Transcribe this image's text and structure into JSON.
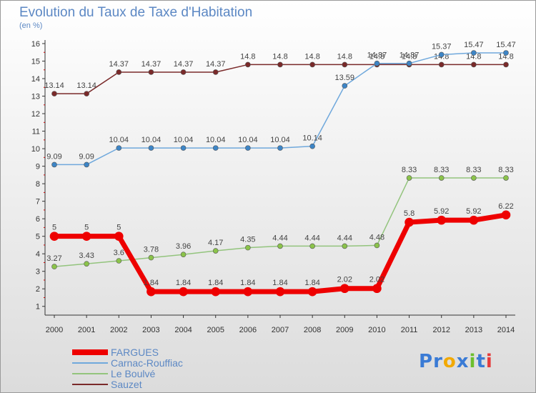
{
  "header": {
    "title": "Evolution du Taux de Taxe d'Habitation",
    "unit": "(en %)"
  },
  "logo": {
    "text": "Proxiti",
    "letters": [
      "P",
      "r",
      "o",
      "x",
      "i",
      "t",
      "i"
    ],
    "colors": [
      "#3a7bd5",
      "#3a7bd5",
      "#f2a900",
      "#3a7bd5",
      "#6cbf2e",
      "#3a7bd5",
      "#e63b3b"
    ]
  },
  "chart_data": {
    "type": "line",
    "x": [
      "2000",
      "2001",
      "2002",
      "2003",
      "2004",
      "2005",
      "2006",
      "2007",
      "2008",
      "2009",
      "2010",
      "2011",
      "2012",
      "2013",
      "2014"
    ],
    "ylim": [
      1,
      16
    ],
    "yticks": [
      "1",
      "2",
      "3",
      "4",
      "5",
      "6",
      "7",
      "8",
      "9",
      "10",
      "11",
      "12",
      "13",
      "14",
      "15",
      "16"
    ],
    "grid": false,
    "legend": "bottom-left",
    "series": [
      {
        "name": "Sauzet",
        "color": "#7a2a2a",
        "marker": "#7a2a2a",
        "width": 1.5,
        "r": 3.5,
        "values": [
          13.14,
          13.14,
          14.37,
          14.37,
          14.37,
          14.37,
          14.8,
          14.8,
          14.8,
          14.8,
          14.8,
          14.8,
          14.8,
          14.8,
          14.8
        ],
        "labels": [
          "13.14",
          "13.14",
          "14.37",
          "14.37",
          "14.37",
          "14.37",
          "14.8",
          "14.8",
          "14.8",
          "14.8",
          "14.8",
          "14.8",
          "14.8",
          "14.8",
          "14.8"
        ]
      },
      {
        "name": "Carnac-Rouffiac",
        "color": "#6fa8dc",
        "marker": "#3d85c6",
        "width": 1.5,
        "r": 3.5,
        "values": [
          9.09,
          9.09,
          10.04,
          10.04,
          10.04,
          10.04,
          10.04,
          10.04,
          10.14,
          13.59,
          14.87,
          14.87,
          15.37,
          15.47,
          15.47
        ],
        "labels": [
          "9.09",
          "9.09",
          "10.04",
          "10.04",
          "10.04",
          "10.04",
          "10.04",
          "10.04",
          "10.14",
          "13.59",
          "14.87",
          "14.87",
          "15.37",
          "15.47",
          "15.47"
        ]
      },
      {
        "name": "Le Boulvé",
        "color": "#93c47d",
        "marker": "#8bc34a",
        "width": 1.5,
        "r": 3.5,
        "values": [
          3.27,
          3.43,
          3.6,
          3.78,
          3.96,
          4.17,
          4.35,
          4.44,
          4.44,
          4.44,
          4.48,
          8.33,
          8.33,
          8.33,
          8.33
        ],
        "labels": [
          "3.27",
          "3.43",
          "3.6",
          "3.78",
          "3.96",
          "4.17",
          "4.35",
          "4.44",
          "4.44",
          "4.44",
          "4.48",
          "8.33",
          "8.33",
          "8.33",
          "8.33"
        ]
      },
      {
        "name": "FARGUES",
        "color": "#ee0000",
        "marker": "#ee0000",
        "width": 7,
        "r": 6,
        "values": [
          5,
          5,
          5,
          1.84,
          1.84,
          1.84,
          1.84,
          1.84,
          1.84,
          2.02,
          2.02,
          5.8,
          5.92,
          5.92,
          6.22
        ],
        "labels": [
          "5",
          "5",
          "5",
          "1.84",
          "1.84",
          "1.84",
          "1.84",
          "1.84",
          "1.84",
          "2.02",
          "2.02",
          "5.8",
          "5.92",
          "5.92",
          "6.22"
        ]
      }
    ],
    "legend_order": [
      "FARGUES",
      "Carnac-Rouffiac",
      "Le Boulvé",
      "Sauzet"
    ]
  }
}
